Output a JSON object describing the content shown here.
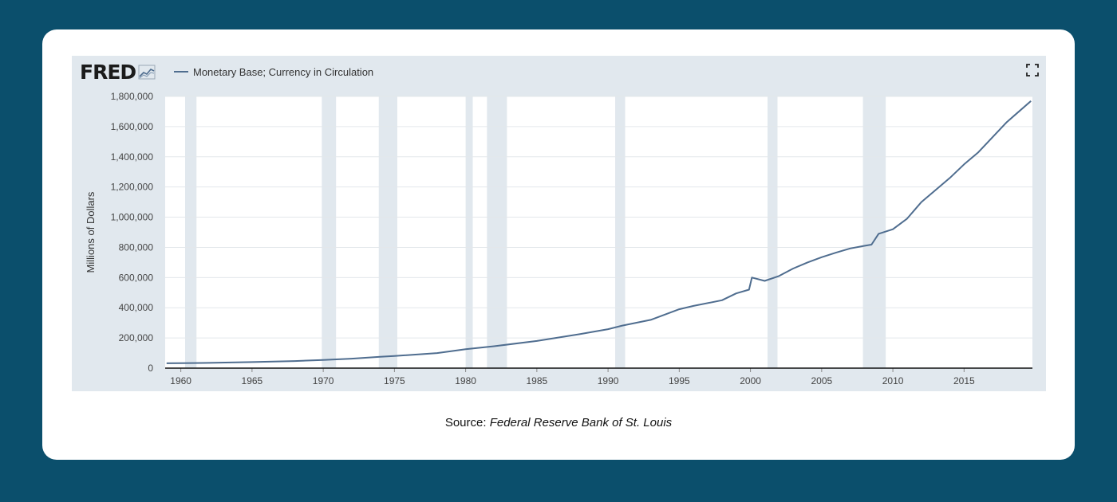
{
  "brand": {
    "name": "FRED"
  },
  "colors": {
    "background": "#0b4f6c",
    "panel": "#e1e8ee",
    "line": "#4f6d8f",
    "recession": "#e1e8ee"
  },
  "chart_data": {
    "type": "line",
    "title": "",
    "series": [
      {
        "name": "Monetary Base; Currency in Circulation",
        "x": [
          1959,
          1960,
          1962,
          1965,
          1968,
          1970,
          1972,
          1974,
          1975,
          1978,
          1980,
          1982,
          1985,
          1988,
          1990,
          1991,
          1993,
          1995,
          1996,
          1998,
          1999,
          1999.9,
          2000.1,
          2001,
          2002,
          2003,
          2004,
          2005,
          2006,
          2007,
          2008,
          2008.5,
          2009,
          2010,
          2011,
          2012,
          2013,
          2014,
          2015,
          2016,
          2017,
          2018,
          2019.7
        ],
        "y": [
          32000,
          32500,
          35000,
          40000,
          47000,
          54000,
          63000,
          75000,
          80000,
          100000,
          125000,
          145000,
          180000,
          225000,
          258000,
          282000,
          320000,
          390000,
          412000,
          450000,
          495000,
          520000,
          600000,
          578000,
          610000,
          660000,
          700000,
          735000,
          765000,
          793000,
          810000,
          818000,
          890000,
          920000,
          990000,
          1100000,
          1180000,
          1260000,
          1350000,
          1430000,
          1530000,
          1630000,
          1770000
        ]
      }
    ],
    "recessions": [
      [
        1960.3,
        1961.1
      ],
      [
        1969.9,
        1970.9
      ],
      [
        1973.9,
        1975.2
      ],
      [
        1980.0,
        1980.5
      ],
      [
        1981.5,
        1982.9
      ],
      [
        1990.5,
        1991.2
      ],
      [
        2001.2,
        2001.9
      ],
      [
        2007.9,
        2009.5
      ]
    ],
    "xlim": [
      1958.9,
      2019.8
    ],
    "ylim": [
      0,
      1800000
    ],
    "yticks": [
      0,
      200000,
      400000,
      600000,
      800000,
      1000000,
      1200000,
      1400000,
      1600000,
      1800000
    ],
    "ytick_labels": [
      "0",
      "200,000",
      "400,000",
      "600,000",
      "800,000",
      "1,000,000",
      "1,200,000",
      "1,400,000",
      "1,600,000",
      "1,800,000"
    ],
    "xticks": [
      1960,
      1965,
      1970,
      1975,
      1980,
      1985,
      1990,
      1995,
      2000,
      2005,
      2010,
      2015
    ],
    "xtick_labels": [
      "1960",
      "1965",
      "1970",
      "1975",
      "1980",
      "1985",
      "1990",
      "1995",
      "2000",
      "2005",
      "2010",
      "2015"
    ],
    "xlabel": "",
    "ylabel": "Millions of Dollars",
    "grid": true,
    "legend": "top-left"
  },
  "source": {
    "prefix": "Source: ",
    "name": "Federal Reserve Bank of St. Louis"
  }
}
